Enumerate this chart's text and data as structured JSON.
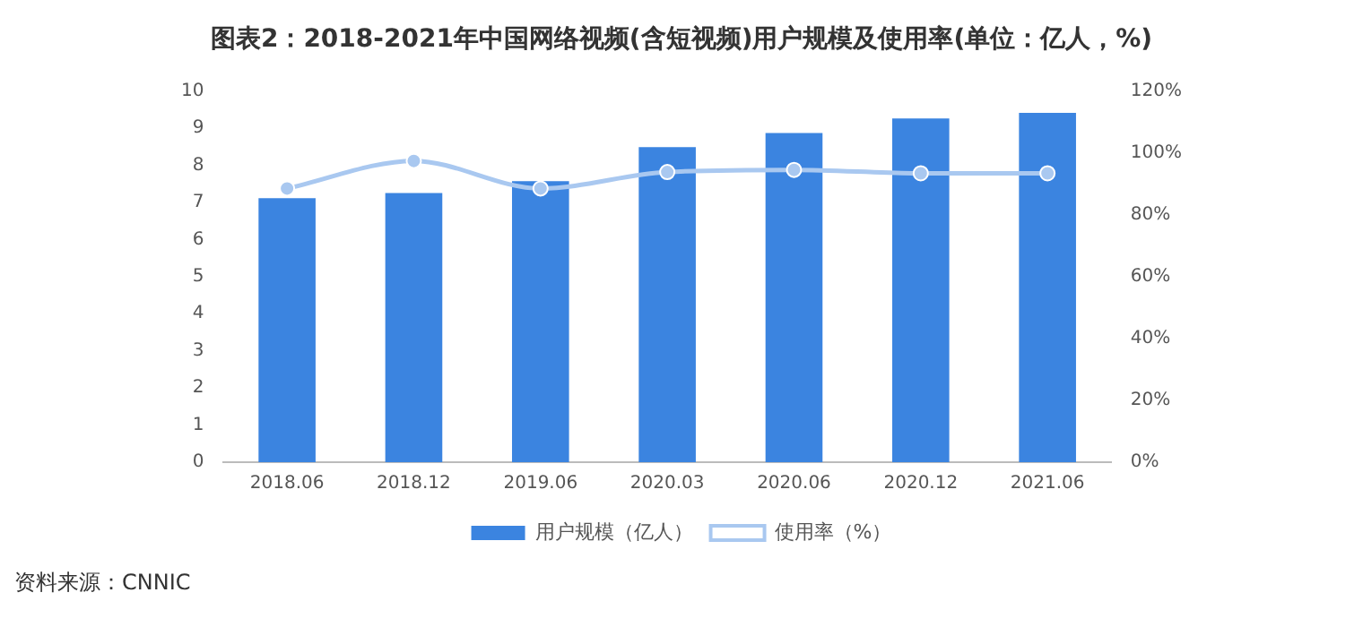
{
  "chart_data": {
    "type": "bar",
    "title": "图表2：2018-2021年中国网络视频(含短视频)用户规模及使用率(单位：亿人，%)",
    "categories": [
      "2018.06",
      "2018.12",
      "2019.06",
      "2020.03",
      "2020.06",
      "2020.12",
      "2021.06"
    ],
    "series": [
      {
        "name": "用户规模（亿人）",
        "color": "#3b84e0",
        "values": [
          7.11,
          7.25,
          7.57,
          8.49,
          8.87,
          9.26,
          9.41
        ]
      },
      {
        "name": "使用率（%）",
        "type": "line",
        "axis": "y2",
        "color": "#a9c8f0",
        "values": [
          88.5,
          97.4,
          88.5,
          93.8,
          94.5,
          93.4,
          93.4
        ]
      }
    ],
    "ylim": [
      0,
      10
    ],
    "yticks": [
      0,
      1,
      2,
      3,
      4,
      5,
      6,
      7,
      8,
      9,
      10
    ],
    "y2lim": [
      0,
      120
    ],
    "y2ticks": [
      {
        "value": 0,
        "label": "0%"
      },
      {
        "value": 20,
        "label": "20%"
      },
      {
        "value": 40,
        "label": "40%"
      },
      {
        "value": 60,
        "label": "60%"
      },
      {
        "value": 80,
        "label": "80%"
      },
      {
        "value": 100,
        "label": "100%"
      },
      {
        "value": 120,
        "label": "120%"
      }
    ],
    "grid": false,
    "legend": "bottom",
    "marker": "circle",
    "annotations": [
      "资料来源：CNNIC"
    ]
  }
}
